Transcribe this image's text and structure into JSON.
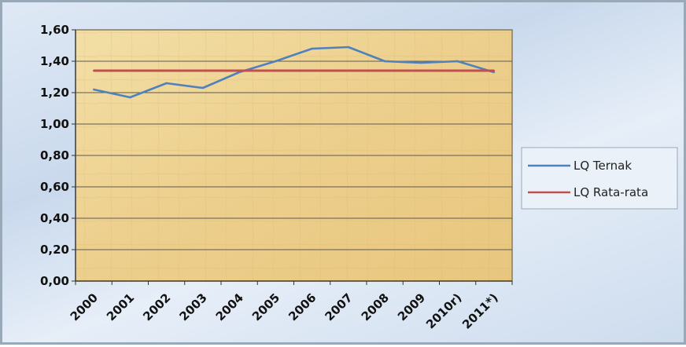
{
  "chart_data": {
    "type": "line",
    "categories": [
      "2000",
      "2001",
      "2002",
      "2003",
      "2004",
      "2005",
      "2006",
      "2007",
      "2008",
      "2009",
      "2010r)",
      "2011*)"
    ],
    "series": [
      {
        "name": "LQ Ternak",
        "color": "#4f81bd",
        "values": [
          1.22,
          1.17,
          1.26,
          1.23,
          1.33,
          1.4,
          1.48,
          1.49,
          1.4,
          1.39,
          1.4,
          1.33
        ]
      },
      {
        "name": "LQ Rata-rata",
        "color": "#c0504d",
        "values": [
          1.34,
          1.34,
          1.34,
          1.34,
          1.34,
          1.34,
          1.34,
          1.34,
          1.34,
          1.34,
          1.34,
          1.34
        ]
      }
    ],
    "ylim": [
      0,
      1.6
    ],
    "yticks": [
      "0,00",
      "0,20",
      "0,40",
      "0,60",
      "0,80",
      "1,00",
      "1,20",
      "1,40",
      "1,60"
    ],
    "grid": "horizontal",
    "legend_position": "right",
    "title": "",
    "xlabel": "",
    "ylabel": ""
  }
}
